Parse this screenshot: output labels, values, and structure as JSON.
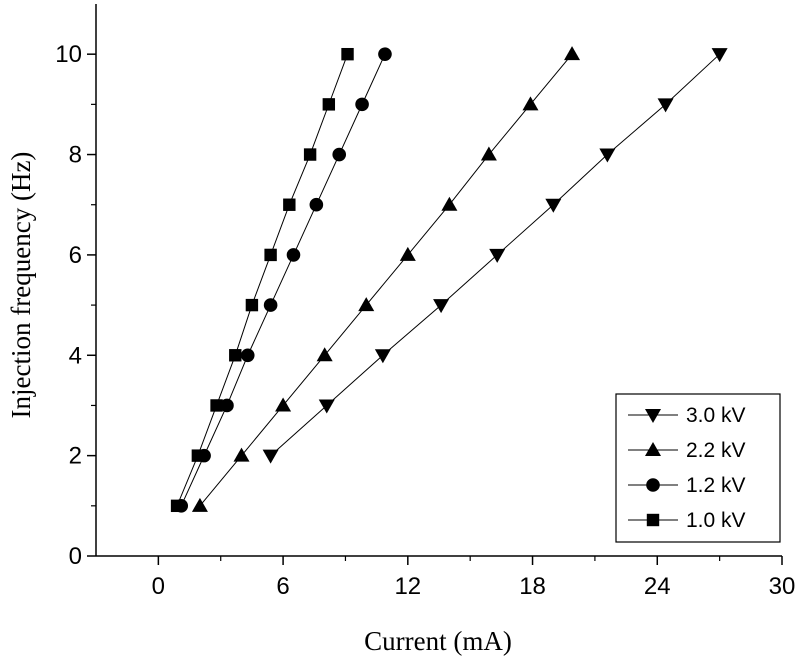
{
  "chart_data": {
    "type": "line",
    "xlabel": "Current (mA)",
    "ylabel": "Injection frequency (Hz)",
    "xlim": [
      -3,
      30
    ],
    "ylim": [
      0,
      11
    ],
    "xticks": [
      0,
      6,
      12,
      18,
      24,
      30
    ],
    "yticks": [
      0,
      2,
      4,
      6,
      8,
      10
    ],
    "xtick_labels": [
      "0",
      "6",
      "12",
      "18",
      "24",
      "30"
    ],
    "ytick_labels": [
      "0",
      "2",
      "4",
      "6",
      "8",
      "10"
    ],
    "grid": false,
    "legend_position": "bottom-right",
    "series": [
      {
        "name": "3.0 kV",
        "marker": "triangle-down",
        "points": [
          [
            5.4,
            2
          ],
          [
            8.1,
            3
          ],
          [
            10.8,
            4
          ],
          [
            13.6,
            5
          ],
          [
            16.3,
            6
          ],
          [
            19.0,
            7
          ],
          [
            21.6,
            8
          ],
          [
            24.4,
            9
          ],
          [
            27.0,
            10
          ]
        ]
      },
      {
        "name": "2.2 kV",
        "marker": "triangle-up",
        "points": [
          [
            2.0,
            1
          ],
          [
            4.0,
            2
          ],
          [
            6.0,
            3
          ],
          [
            8.0,
            4
          ],
          [
            10.0,
            5
          ],
          [
            12.0,
            6
          ],
          [
            14.0,
            7
          ],
          [
            15.9,
            8
          ],
          [
            17.9,
            9
          ],
          [
            19.9,
            10
          ]
        ]
      },
      {
        "name": "1.2 kV",
        "marker": "circle",
        "points": [
          [
            1.1,
            1
          ],
          [
            2.2,
            2
          ],
          [
            3.3,
            3
          ],
          [
            4.3,
            4
          ],
          [
            5.4,
            5
          ],
          [
            6.5,
            6
          ],
          [
            7.6,
            7
          ],
          [
            8.7,
            8
          ],
          [
            9.8,
            9
          ],
          [
            10.9,
            10
          ]
        ]
      },
      {
        "name": "1.0 kV",
        "marker": "square",
        "points": [
          [
            0.9,
            1
          ],
          [
            1.9,
            2
          ],
          [
            2.8,
            3
          ],
          [
            3.7,
            4
          ],
          [
            4.5,
            5
          ],
          [
            5.4,
            6
          ],
          [
            6.3,
            7
          ],
          [
            7.3,
            8
          ],
          [
            8.2,
            9
          ],
          [
            9.1,
            10
          ]
        ]
      }
    ]
  }
}
